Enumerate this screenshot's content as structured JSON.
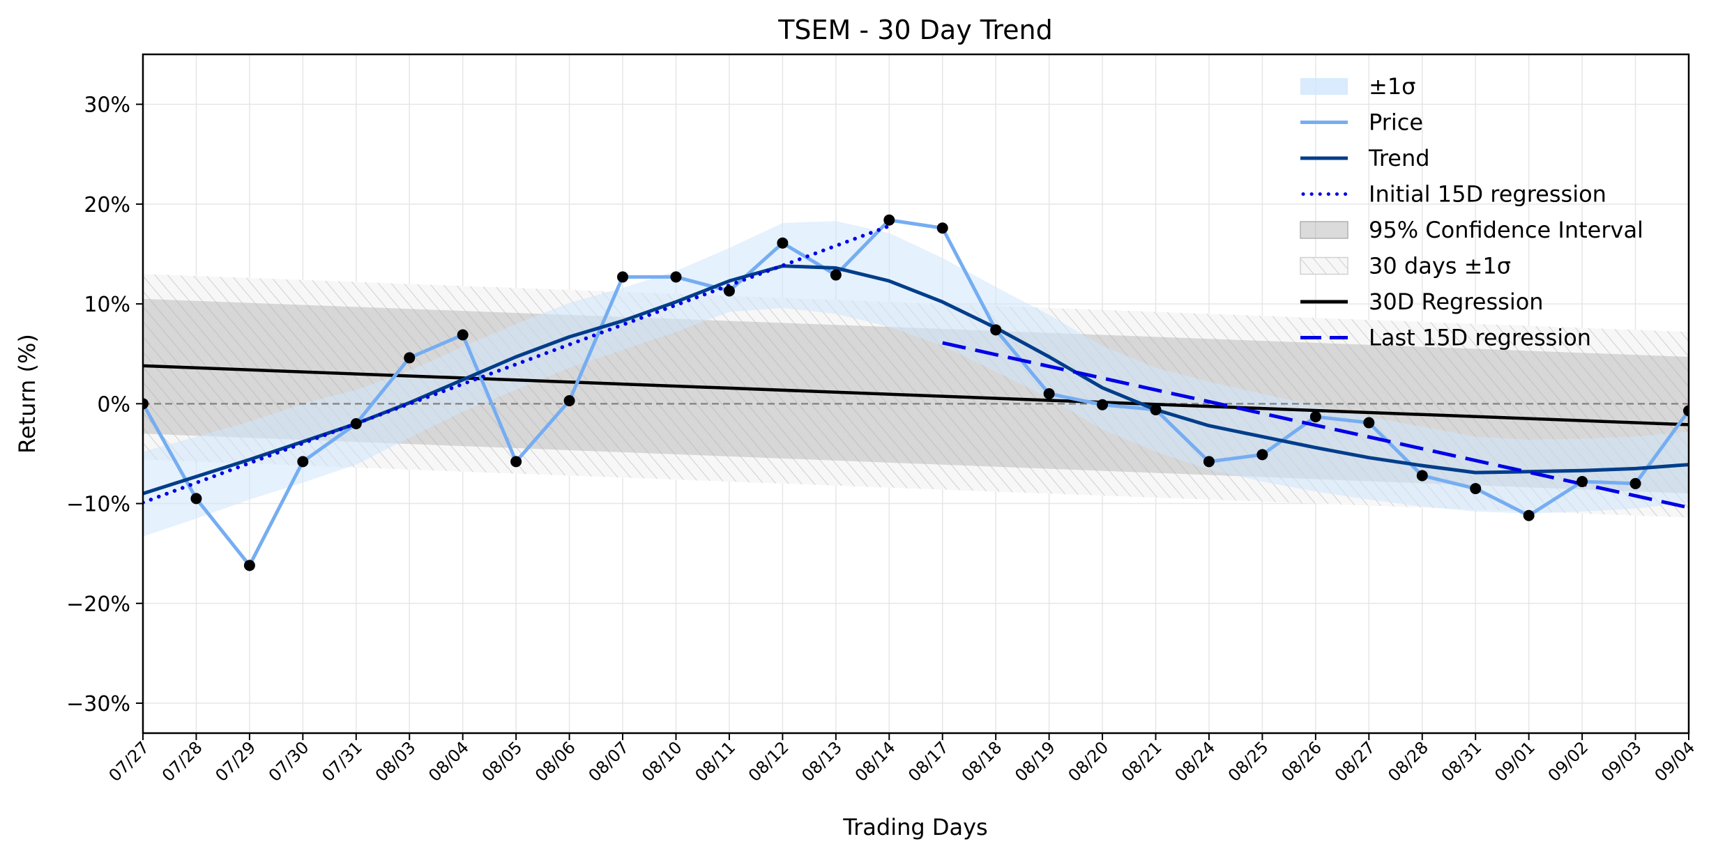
{
  "chart_data": {
    "type": "line",
    "title": "TSEM - 30 Day Trend",
    "xlabel": "Trading Days",
    "ylabel": "Return (%)",
    "ylim": [
      -33,
      35
    ],
    "yticks": [
      -30,
      -20,
      -10,
      0,
      10,
      20,
      30
    ],
    "ytick_labels": [
      "−30%",
      "−20%",
      "−10%",
      "0%",
      "10%",
      "20%",
      "30%"
    ],
    "grid": true,
    "legend_position": "top-right",
    "x": [
      "07/27",
      "07/28",
      "07/29",
      "07/30",
      "07/31",
      "08/03",
      "08/04",
      "08/05",
      "08/06",
      "08/07",
      "08/10",
      "08/11",
      "08/12",
      "08/13",
      "08/14",
      "08/17",
      "08/18",
      "08/19",
      "08/20",
      "08/21",
      "08/24",
      "08/25",
      "08/26",
      "08/27",
      "08/28",
      "08/31",
      "09/01",
      "09/02",
      "09/03",
      "09/04"
    ],
    "series": [
      {
        "name": "Price",
        "color": "#75adf2",
        "values": [
          0,
          -9.5,
          -16.2,
          -5.8,
          -2.0,
          4.6,
          6.9,
          -5.8,
          0.3,
          12.7,
          12.7,
          11.3,
          16.1,
          12.9,
          18.4,
          17.6,
          7.4,
          1.0,
          -0.1,
          -0.6,
          -5.8,
          -5.1,
          -1.3,
          -1.9,
          -7.2,
          -8.5,
          -11.2,
          -7.8,
          -8.0,
          -0.7
        ]
      },
      {
        "name": "Trend",
        "color": "#003d8a",
        "values": [
          -9.0,
          -7.3,
          -5.6,
          -3.8,
          -2.0,
          0.1,
          2.4,
          4.7,
          6.7,
          8.3,
          10.2,
          12.3,
          13.8,
          13.6,
          12.3,
          10.2,
          7.6,
          4.7,
          1.6,
          -0.6,
          -2.2,
          -3.3,
          -4.4,
          -5.4,
          -6.2,
          -6.9,
          -6.8,
          -6.7,
          -6.5,
          -6.1
        ]
      },
      {
        "name": "Initial 15D regression",
        "color": "#0000e6",
        "style": "dotted",
        "x_range": [
          0,
          14
        ],
        "y_range": [
          -9.9,
          17.8
        ]
      },
      {
        "name": "Last 15D regression",
        "color": "#0000e6",
        "style": "dashed",
        "x_range": [
          15,
          29
        ],
        "y_range": [
          6.1,
          -10.4
        ]
      },
      {
        "name": "30D Regression",
        "color": "#000000",
        "x_range": [
          0,
          29
        ],
        "y_range": [
          3.8,
          -2.1
        ]
      }
    ],
    "bands": [
      {
        "name": "±1σ",
        "color": "#cfe6fb",
        "upper": [
          -4.8,
          -3.3,
          -1.8,
          0.0,
          1.4,
          3.3,
          5.7,
          8.0,
          10.1,
          11.6,
          13.3,
          15.6,
          18.1,
          18.3,
          17.1,
          14.6,
          11.7,
          8.9,
          5.8,
          3.6,
          2.2,
          1.0,
          -0.2,
          -1.3,
          -2.3,
          -3.3,
          -3.6,
          -3.5,
          -3.3,
          -2.8
        ],
        "lower": [
          -13.3,
          -11.5,
          -9.6,
          -7.9,
          -6.1,
          -3.4,
          -0.8,
          1.4,
          3.6,
          5.4,
          7.2,
          9.2,
          9.6,
          9.0,
          7.7,
          5.8,
          3.2,
          0.6,
          -2.6,
          -4.8,
          -6.6,
          -7.8,
          -8.8,
          -9.6,
          -10.3,
          -10.8,
          -11.0,
          -10.8,
          -10.5,
          -9.9
        ]
      },
      {
        "name": "95% Confidence Interval",
        "color": "#b0b0b0",
        "x_range": [
          0,
          29
        ],
        "upper": [
          10.5,
          4.7
        ],
        "lower": [
          -3.0,
          -9.0
        ]
      },
      {
        "name": "30 days ±1σ",
        "color": "#d9d9d9",
        "hatch": true,
        "x_range": [
          0,
          29
        ],
        "upper": [
          13.0,
          7.2
        ],
        "lower": [
          -5.6,
          -11.4
        ]
      }
    ],
    "reference_line": {
      "y": 0,
      "color": "#888888",
      "style": "dashed"
    },
    "markers": {
      "color": "#000000",
      "applies_to": "Price"
    }
  }
}
